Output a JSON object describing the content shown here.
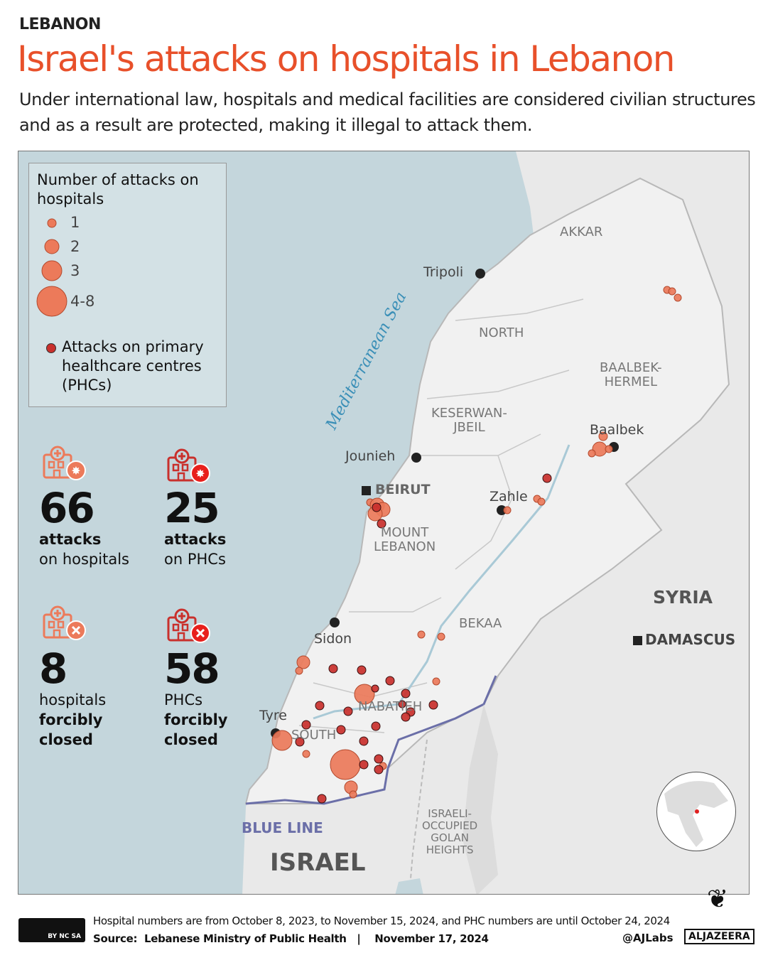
{
  "header": {
    "kicker": "LEBANON",
    "title": "Israel's attacks on hospitals in Lebanon",
    "subtitle": "Under international law, hospitals and medical facilities are considered civilian structures and as a result are protected, making it illegal to attack them."
  },
  "legend": {
    "title": "Number of attacks on hospitals",
    "sizes": [
      "1",
      "2",
      "3",
      "4-8"
    ],
    "phc_label": "Attacks on primary healthcare centres (PHCs)"
  },
  "stats": [
    {
      "icon": "hospital-attack-icon",
      "value": "66",
      "line1": "attacks",
      "line2": "on hospitals"
    },
    {
      "icon": "phc-attack-icon",
      "value": "25",
      "line1": "attacks",
      "line2": "on PHCs"
    },
    {
      "icon": "hospital-closed-icon",
      "value": "8",
      "line1": "hospitals",
      "line2": "forcibly",
      "line3": "closed"
    },
    {
      "icon": "phc-closed-icon",
      "value": "58",
      "line1": "PHCs",
      "line2": "forcibly",
      "line3": "closed"
    }
  ],
  "map": {
    "sea": "Mediterranean Sea",
    "regions": [
      "AKKAR",
      "NORTH",
      "BAALBEK-\nHERMEL",
      "KESERWAN-\nJBEIL",
      "MOUNT\nLEBANON",
      "BEKAA",
      "NABATIEH",
      "SOUTH",
      "ISRAELI-\nOCCUPIED\nGOLAN\nHEIGHTS"
    ],
    "cities": [
      "Tripoli",
      "Jounieh",
      "BEIRUT",
      "Zahle",
      "Baalbek",
      "Sidon",
      "Tyre",
      "DAMASCUS"
    ],
    "countries": [
      "SYRIA",
      "ISRAEL"
    ],
    "blue_line": "BLUE LINE"
  },
  "colors": {
    "hospital": "#ec7a5a",
    "phc": "#c9302c",
    "title": "#e8502a",
    "sea": "#c4d6dc",
    "blue_line": "#6b6fa8"
  },
  "footer": {
    "note": "Hospital numbers are from October 8, 2023, to November 15, 2024, and PHC numbers are until October 24, 2024",
    "source": "Source:  Lebanese Ministry of Public Health   |    November 17, 2024",
    "handle": "@AJLabs",
    "brand": "ALJAZEERA",
    "license": "BY NC SA"
  }
}
